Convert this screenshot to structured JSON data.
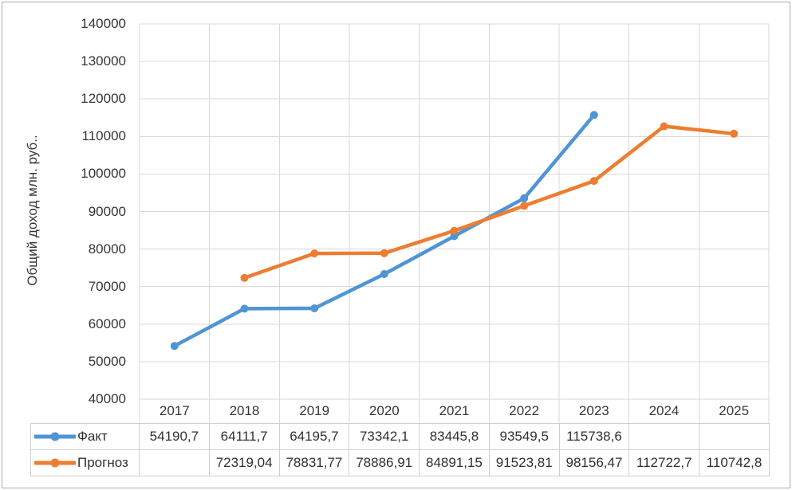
{
  "chart_data": {
    "type": "line",
    "title": "",
    "xlabel": "",
    "ylabel": "Общий доход млн. руб..",
    "categories": [
      "2017",
      "2018",
      "2019",
      "2020",
      "2021",
      "2022",
      "2023",
      "2024",
      "2025"
    ],
    "ylim": [
      40000,
      140000
    ],
    "yticks": [
      40000,
      50000,
      60000,
      70000,
      80000,
      90000,
      100000,
      110000,
      120000,
      130000,
      140000
    ],
    "grid": true,
    "legend_position": "data-table-left",
    "series": [
      {
        "key": "fact",
        "name": "Факт",
        "color": "#4F95D5",
        "values": [
          54190.7,
          64111.7,
          64195.7,
          73342.1,
          83445.8,
          93549.5,
          115738.6,
          null,
          null
        ],
        "display": [
          "54190,7",
          "64111,7",
          "64195,7",
          "73342,1",
          "83445,8",
          "93549,5",
          "115738,6",
          "",
          ""
        ]
      },
      {
        "key": "forecast",
        "name": "Прогноз",
        "color": "#ED7D31",
        "values": [
          null,
          72319.04,
          78831.77,
          78886.91,
          84891.15,
          91523.81,
          98156.47,
          112722.7,
          110742.8
        ],
        "display": [
          "",
          "72319,04",
          "78831,77",
          "78886,91",
          "84891,15",
          "91523,81",
          "98156,47",
          "112722,7",
          "110742,8"
        ]
      }
    ]
  },
  "colors": {
    "grid": "#D9D9D9",
    "table_border": "#CFCFCF",
    "text": "#363636",
    "frame_border": "#ACACAC"
  }
}
